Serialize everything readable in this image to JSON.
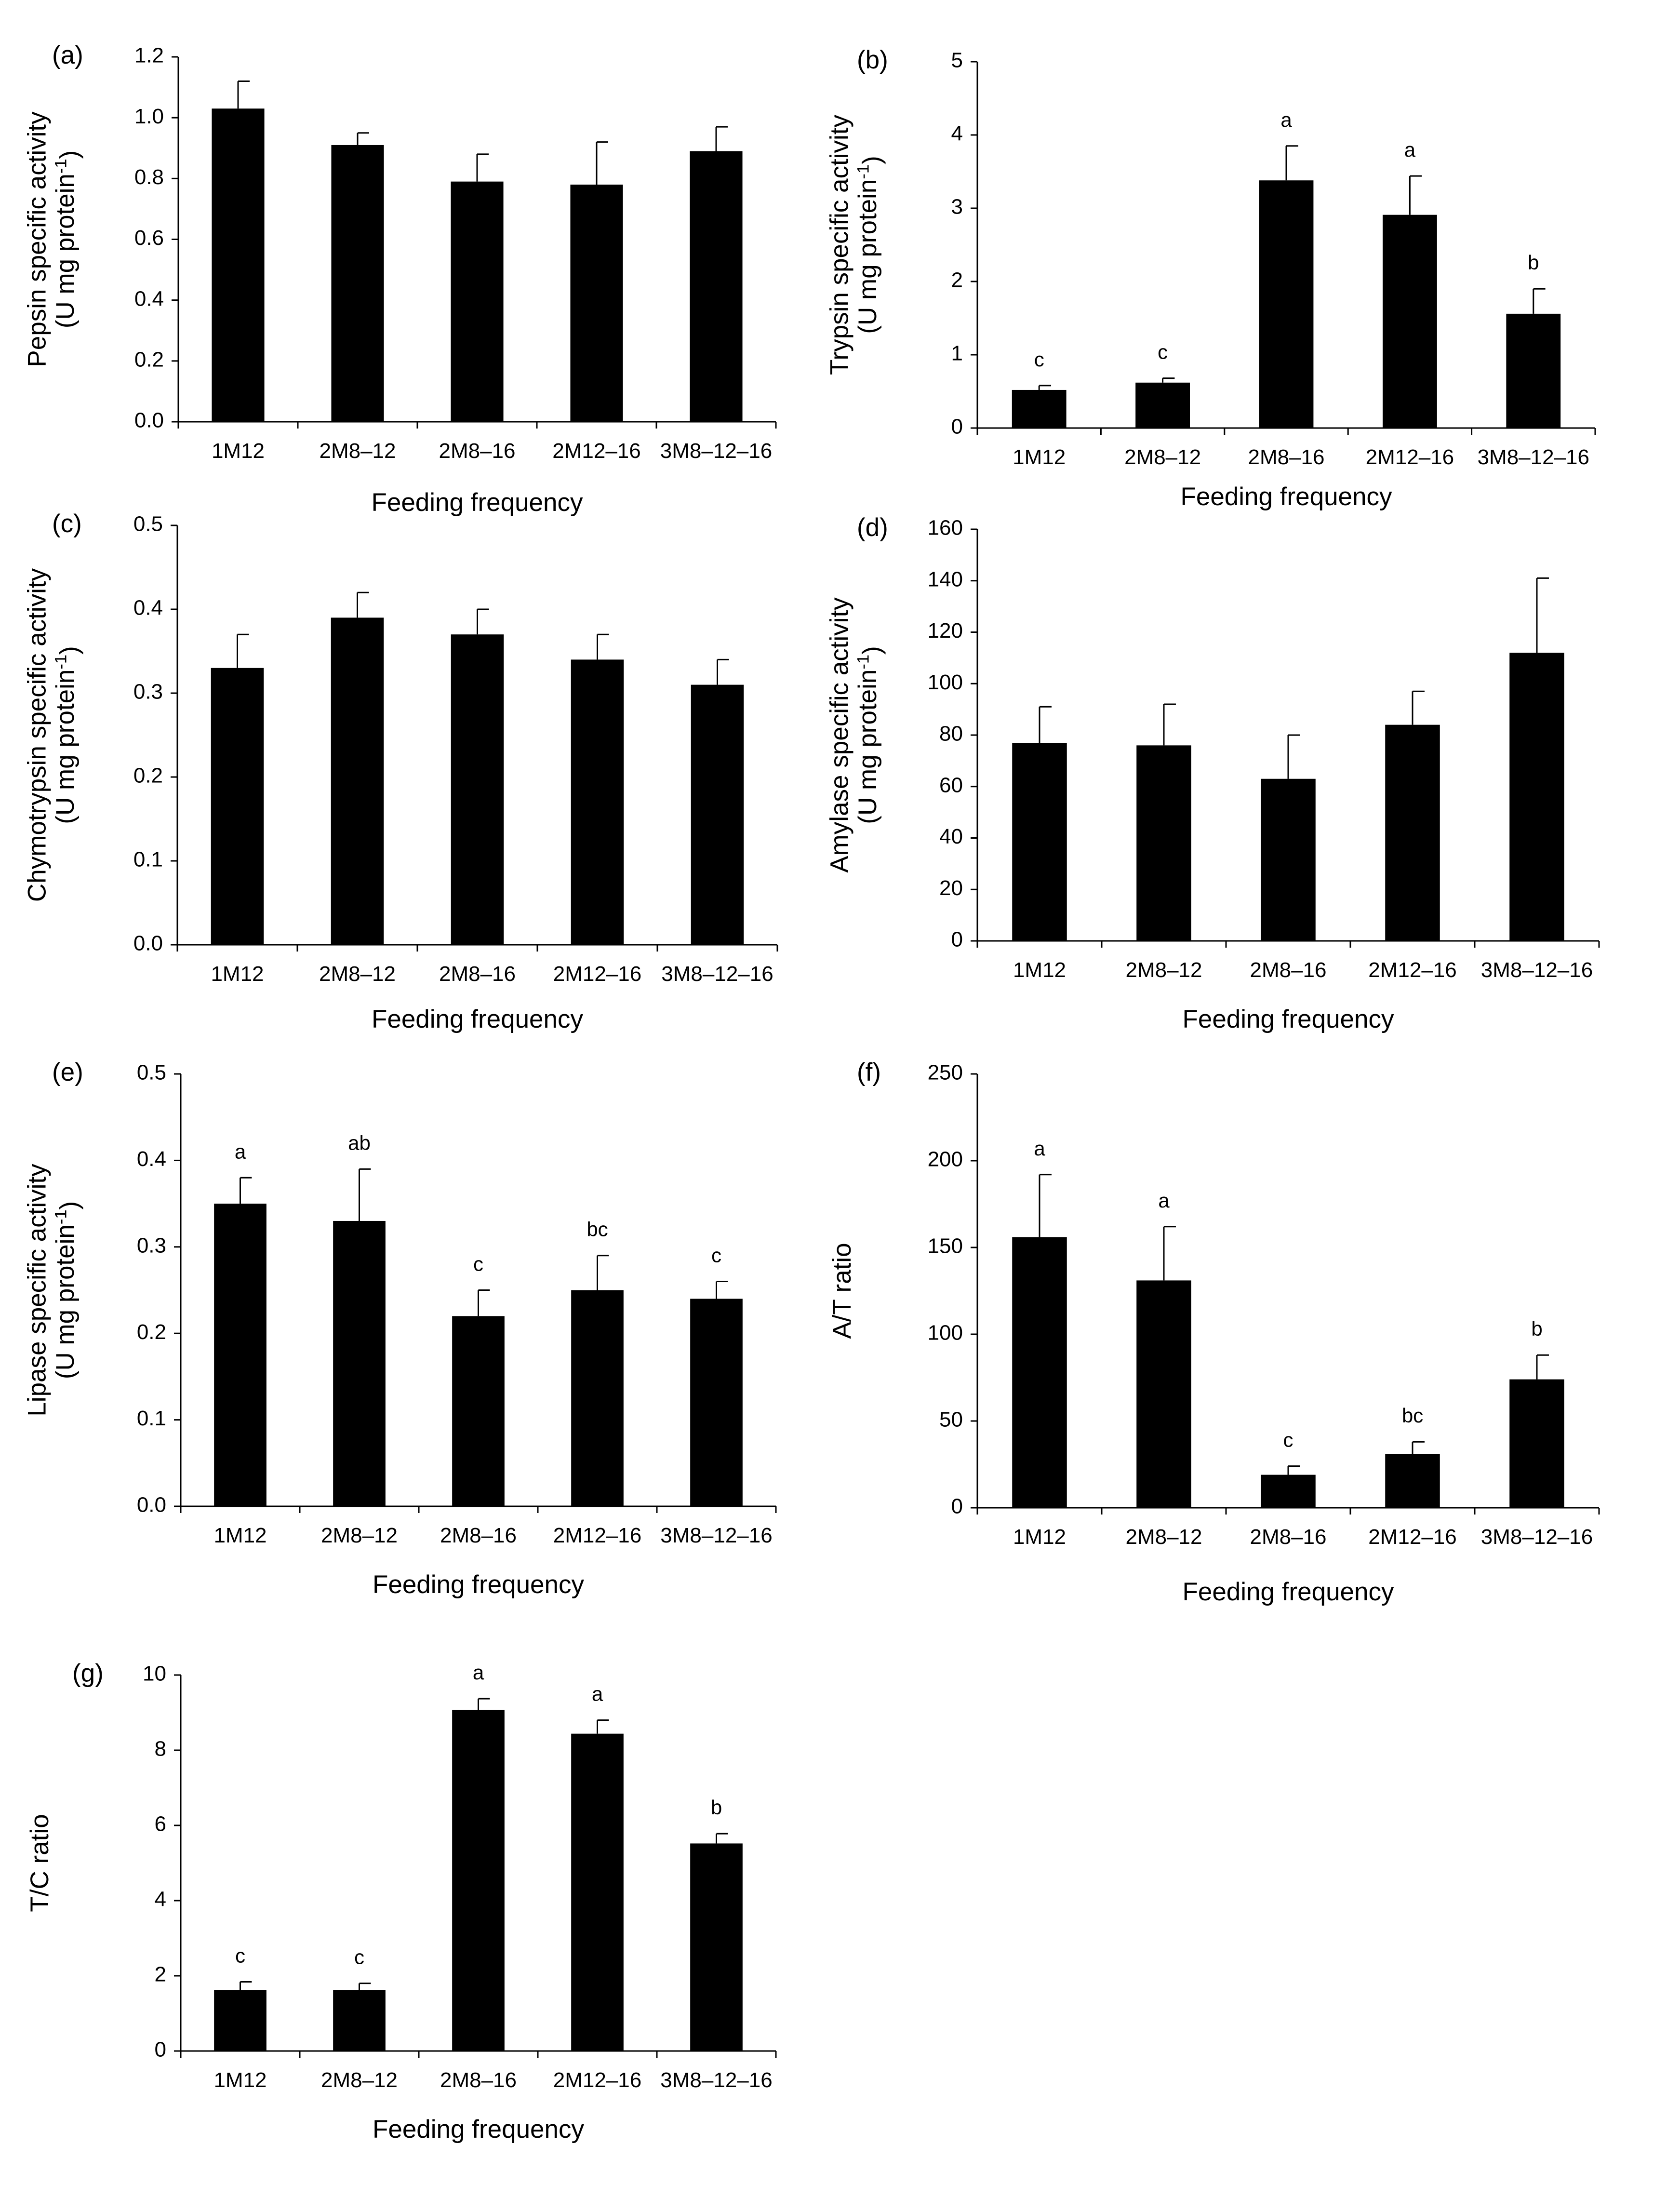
{
  "chart_data": [
    {
      "panel": "(a)",
      "type": "bar",
      "categories": [
        "1M12",
        "2M8–12",
        "2M8–16",
        "2M12–16",
        "3M8–12–16"
      ],
      "values": [
        1.03,
        0.91,
        0.79,
        0.78,
        0.89
      ],
      "errors": [
        0.09,
        0.04,
        0.09,
        0.14,
        0.08
      ],
      "letters": [
        "",
        "",
        "",
        "",
        ""
      ],
      "ylabel_lines": [
        "Pepsin specific activity",
        "(U mg protein",
        "-1",
        ")"
      ],
      "xlabel": "Feeding frequency",
      "ylim": [
        0,
        1.2
      ],
      "ticks": [
        "0.0",
        "0.2",
        "0.4",
        "0.6",
        "0.8",
        "1.0",
        "1.2"
      ]
    },
    {
      "panel": "(b)",
      "type": "bar",
      "categories": [
        "1M12",
        "2M8–12",
        "2M8–16",
        "2M12–16",
        "3M8–12–16"
      ],
      "values": [
        0.52,
        0.62,
        3.38,
        2.91,
        1.56
      ],
      "errors": [
        0.06,
        0.06,
        0.47,
        0.53,
        0.34
      ],
      "letters": [
        "c",
        "c",
        "a",
        "a",
        "b"
      ],
      "ylabel_lines": [
        "Trypsin specific activity",
        "(U mg protein",
        "-1",
        ")"
      ],
      "xlabel": "Feeding frequency",
      "ylim": [
        0,
        5
      ],
      "ticks": [
        "0",
        "1",
        "2",
        "3",
        "4",
        "5"
      ]
    },
    {
      "panel": "(c)",
      "type": "bar",
      "categories": [
        "1M12",
        "2M8–12",
        "2M8–16",
        "2M12–16",
        "3M8–12–16"
      ],
      "values": [
        0.33,
        0.39,
        0.37,
        0.34,
        0.31
      ],
      "errors": [
        0.04,
        0.03,
        0.03,
        0.03,
        0.03
      ],
      "letters": [
        "",
        "",
        "",
        "",
        ""
      ],
      "ylabel_lines": [
        "Chymotrypsin specific activity",
        "(U mg protein",
        "-1",
        ")"
      ],
      "xlabel": "Feeding frequency",
      "ylim": [
        0,
        0.5
      ],
      "ticks": [
        "0.0",
        "0.1",
        "0.2",
        "0.3",
        "0.4",
        "0.5"
      ]
    },
    {
      "panel": "(d)",
      "type": "bar",
      "categories": [
        "1M12",
        "2M8–12",
        "2M8–16",
        "2M12–16",
        "3M8–12–16"
      ],
      "values": [
        77,
        76,
        63,
        84,
        112
      ],
      "errors": [
        14,
        16,
        17,
        13,
        29
      ],
      "letters": [
        "",
        "",
        "",
        "",
        ""
      ],
      "ylabel_lines": [
        "Amylase specific activity",
        "(U mg protein",
        "-1",
        ")"
      ],
      "xlabel": "Feeding frequency",
      "ylim": [
        0,
        160
      ],
      "ticks": [
        "0",
        "20",
        "40",
        "60",
        "80",
        "100",
        "120",
        "140",
        "160"
      ]
    },
    {
      "panel": "(e)",
      "type": "bar",
      "categories": [
        "1M12",
        "2M8–12",
        "2M8–16",
        "2M12–16",
        "3M8–12–16"
      ],
      "values": [
        0.35,
        0.33,
        0.22,
        0.25,
        0.24
      ],
      "errors": [
        0.03,
        0.06,
        0.03,
        0.04,
        0.02
      ],
      "letters": [
        "a",
        "ab",
        "c",
        "bc",
        "c"
      ],
      "ylabel_lines": [
        "Lipase specific activity",
        "(U mg protein",
        "-1",
        ")"
      ],
      "xlabel": "Feeding frequency",
      "ylim": [
        0,
        0.5
      ],
      "ticks": [
        "0.0",
        "0.1",
        "0.2",
        "0.3",
        "0.4",
        "0.5"
      ]
    },
    {
      "panel": "(f)",
      "type": "bar",
      "categories": [
        "1M12",
        "2M8–12",
        "2M8–16",
        "2M12–16",
        "3M8–12–16"
      ],
      "values": [
        156,
        131,
        19,
        31,
        74
      ],
      "errors": [
        36,
        31,
        5,
        7,
        14
      ],
      "letters": [
        "a",
        "a",
        "c",
        "bc",
        "b"
      ],
      "ylabel_lines": [
        "A/T ratio"
      ],
      "xlabel": "Feeding frequency",
      "ylim": [
        0,
        250
      ],
      "ticks": [
        "0",
        "50",
        "100",
        "150",
        "200",
        "250"
      ]
    },
    {
      "panel": "(g)",
      "type": "bar",
      "categories": [
        "1M12",
        "2M8–12",
        "2M8–16",
        "2M12–16",
        "3M8–12–16"
      ],
      "values": [
        1.62,
        1.62,
        9.07,
        8.44,
        5.52
      ],
      "errors": [
        0.22,
        0.18,
        0.3,
        0.36,
        0.26
      ],
      "letters": [
        "c",
        "c",
        "a",
        "a",
        "b"
      ],
      "ylabel_lines": [
        "T/C ratio"
      ],
      "xlabel": "Feeding frequency",
      "ylim": [
        0,
        10
      ],
      "ticks": [
        "0",
        "2",
        "4",
        "6",
        "8",
        "10"
      ]
    }
  ]
}
